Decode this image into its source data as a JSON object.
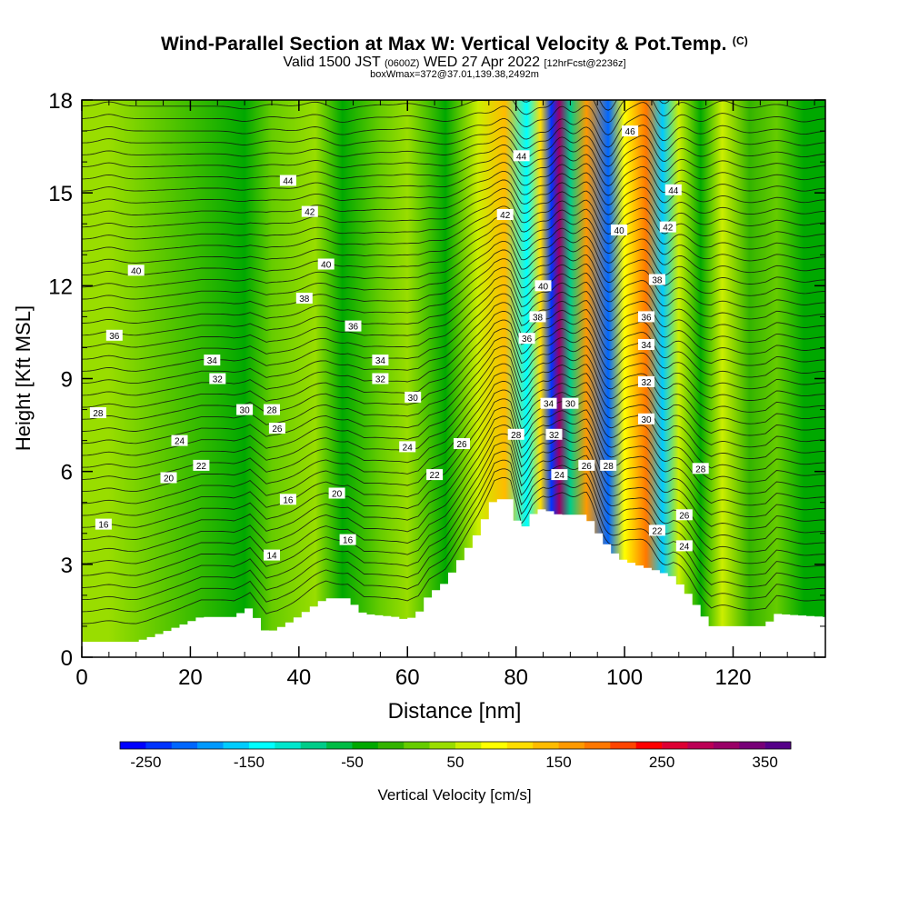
{
  "chart_data": {
    "type": "heatmap",
    "title": "Wind-Parallel Section at Max W: Vertical Velocity & Pot.Temp.",
    "title_mark": "(C)",
    "subtitle_main_a": "Valid 1500 JST",
    "subtitle_small_a": "(0600Z)",
    "subtitle_main_b": "WED 27 Apr 2022",
    "subtitle_small_b": "[12hrFcst@2236z]",
    "subtitle2": "boxWmax=372@37.01,139.38,2492m",
    "xlabel": "Distance [nm]",
    "ylabel": "Height [Kft MSL]",
    "xlim": [
      0,
      137
    ],
    "ylim": [
      0,
      18
    ],
    "x_ticks": [
      "0",
      "20",
      "40",
      "60",
      "80",
      "100",
      "120"
    ],
    "y_ticks": [
      "0",
      "3",
      "6",
      "9",
      "12",
      "15",
      "18"
    ],
    "colorbar": {
      "label": "Vertical Velocity [cm/s]",
      "tick_labels": [
        "-250",
        "-150",
        "-50",
        "50",
        "150",
        "250",
        "350"
      ],
      "tick_values": [
        -250,
        -150,
        -50,
        50,
        150,
        250,
        350
      ],
      "range": [
        -275,
        375
      ],
      "colors": [
        "#0000ff",
        "#0033ff",
        "#0066ff",
        "#0099ff",
        "#00ccff",
        "#00ffff",
        "#00e6cc",
        "#00cc88",
        "#00bb44",
        "#00a800",
        "#33b300",
        "#66cc00",
        "#99dd00",
        "#ccee00",
        "#ffff00",
        "#ffdd00",
        "#ffbb00",
        "#ff9900",
        "#ff7700",
        "#ff4400",
        "#ff0000",
        "#dd0033",
        "#bb0055",
        "#990066",
        "#770077",
        "#550088"
      ]
    },
    "terrain_kft": [
      {
        "x": 0,
        "h": 0.5
      },
      {
        "x": 10,
        "h": 0.5
      },
      {
        "x": 12,
        "h": 0.6
      },
      {
        "x": 18,
        "h": 1.0
      },
      {
        "x": 22,
        "h": 1.3
      },
      {
        "x": 28,
        "h": 1.3
      },
      {
        "x": 31,
        "h": 1.6
      },
      {
        "x": 34,
        "h": 0.8
      },
      {
        "x": 36,
        "h": 0.9
      },
      {
        "x": 39,
        "h": 1.2
      },
      {
        "x": 45,
        "h": 1.9
      },
      {
        "x": 49,
        "h": 1.9
      },
      {
        "x": 52,
        "h": 1.4
      },
      {
        "x": 58,
        "h": 1.3
      },
      {
        "x": 60,
        "h": 1.2
      },
      {
        "x": 62,
        "h": 1.4
      },
      {
        "x": 64,
        "h": 2.0
      },
      {
        "x": 67,
        "h": 2.4
      },
      {
        "x": 70,
        "h": 3.2
      },
      {
        "x": 73,
        "h": 4.0
      },
      {
        "x": 76,
        "h": 5.1
      },
      {
        "x": 79,
        "h": 5.1
      },
      {
        "x": 81,
        "h": 4.0
      },
      {
        "x": 83,
        "h": 4.6
      },
      {
        "x": 85,
        "h": 4.8
      },
      {
        "x": 88,
        "h": 4.6
      },
      {
        "x": 93,
        "h": 4.6
      },
      {
        "x": 96,
        "h": 3.8
      },
      {
        "x": 99,
        "h": 3.2
      },
      {
        "x": 102,
        "h": 3.0
      },
      {
        "x": 106,
        "h": 2.8
      },
      {
        "x": 109,
        "h": 2.6
      },
      {
        "x": 112,
        "h": 2.0
      },
      {
        "x": 116,
        "h": 1.0
      },
      {
        "x": 120,
        "h": 1.0
      },
      {
        "x": 126,
        "h": 1.0
      },
      {
        "x": 128,
        "h": 1.4
      },
      {
        "x": 137,
        "h": 1.3
      }
    ],
    "vertical_velocity_bands": [
      {
        "x": 5,
        "w": 46
      },
      {
        "x": 30,
        "w": -30
      },
      {
        "x": 35,
        "w": 20
      },
      {
        "x": 43,
        "w": 45
      },
      {
        "x": 48,
        "w": -40
      },
      {
        "x": 55,
        "w": 15
      },
      {
        "x": 60,
        "w": 30
      },
      {
        "x": 67,
        "w": -30
      },
      {
        "x": 73,
        "w": 60
      },
      {
        "x": 78,
        "w": 140
      },
      {
        "x": 82,
        "w": -130
      },
      {
        "x": 84.5,
        "w": 110
      },
      {
        "x": 86.5,
        "w": -230
      },
      {
        "x": 88,
        "w": 310
      },
      {
        "x": 90,
        "w": -90
      },
      {
        "x": 93,
        "w": 170
      },
      {
        "x": 97,
        "w": -210
      },
      {
        "x": 100,
        "w": 100
      },
      {
        "x": 104,
        "w": 190
      },
      {
        "x": 107,
        "w": -160
      },
      {
        "x": 110,
        "w": 70
      },
      {
        "x": 114,
        "w": -40
      },
      {
        "x": 118,
        "w": 60
      },
      {
        "x": 123,
        "w": -20
      },
      {
        "x": 128,
        "w": 20
      },
      {
        "x": 133,
        "w": -35
      }
    ],
    "theta_contour_labels": [
      {
        "text": "46",
        "x": 101,
        "y": 17.0
      },
      {
        "text": "44",
        "x": 81,
        "y": 16.2
      },
      {
        "text": "44",
        "x": 38,
        "y": 15.4
      },
      {
        "text": "44",
        "x": 109,
        "y": 15.1
      },
      {
        "text": "42",
        "x": 42,
        "y": 14.4
      },
      {
        "text": "42",
        "x": 78,
        "y": 14.3
      },
      {
        "text": "42",
        "x": 108,
        "y": 13.9
      },
      {
        "text": "40",
        "x": 99,
        "y": 13.8
      },
      {
        "text": "40",
        "x": 45,
        "y": 12.7
      },
      {
        "text": "40",
        "x": 10,
        "y": 12.5
      },
      {
        "text": "38",
        "x": 106,
        "y": 12.2
      },
      {
        "text": "40",
        "x": 85,
        "y": 12.0
      },
      {
        "text": "38",
        "x": 41,
        "y": 11.6
      },
      {
        "text": "38",
        "x": 84,
        "y": 11.0
      },
      {
        "text": "36",
        "x": 104,
        "y": 11.0
      },
      {
        "text": "36",
        "x": 50,
        "y": 10.7
      },
      {
        "text": "36",
        "x": 82,
        "y": 10.3
      },
      {
        "text": "36",
        "x": 6,
        "y": 10.4
      },
      {
        "text": "34",
        "x": 104,
        "y": 10.1
      },
      {
        "text": "34",
        "x": 24,
        "y": 9.6
      },
      {
        "text": "34",
        "x": 55,
        "y": 9.6
      },
      {
        "text": "32",
        "x": 25,
        "y": 9.0
      },
      {
        "text": "32",
        "x": 55,
        "y": 9.0
      },
      {
        "text": "32",
        "x": 104,
        "y": 8.9
      },
      {
        "text": "30",
        "x": 61,
        "y": 8.4
      },
      {
        "text": "34",
        "x": 86,
        "y": 8.2
      },
      {
        "text": "30",
        "x": 90,
        "y": 8.2
      },
      {
        "text": "30",
        "x": 30,
        "y": 8.0
      },
      {
        "text": "28",
        "x": 35,
        "y": 8.0
      },
      {
        "text": "28",
        "x": 3,
        "y": 7.9
      },
      {
        "text": "30",
        "x": 104,
        "y": 7.7
      },
      {
        "text": "26",
        "x": 36,
        "y": 7.4
      },
      {
        "text": "28",
        "x": 80,
        "y": 7.2
      },
      {
        "text": "32",
        "x": 87,
        "y": 7.2
      },
      {
        "text": "24",
        "x": 18,
        "y": 7.0
      },
      {
        "text": "26",
        "x": 70,
        "y": 6.9
      },
      {
        "text": "24",
        "x": 60,
        "y": 6.8
      },
      {
        "text": "22",
        "x": 22,
        "y": 6.2
      },
      {
        "text": "26",
        "x": 93,
        "y": 6.2
      },
      {
        "text": "28",
        "x": 97,
        "y": 6.2
      },
      {
        "text": "28",
        "x": 114,
        "y": 6.1
      },
      {
        "text": "22",
        "x": 65,
        "y": 5.9
      },
      {
        "text": "24",
        "x": 88,
        "y": 5.9
      },
      {
        "text": "20",
        "x": 16,
        "y": 5.8
      },
      {
        "text": "20",
        "x": 47,
        "y": 5.3
      },
      {
        "text": "16",
        "x": 38,
        "y": 5.1
      },
      {
        "text": "26",
        "x": 111,
        "y": 4.6
      },
      {
        "text": "16",
        "x": 4,
        "y": 4.3
      },
      {
        "text": "22",
        "x": 106,
        "y": 4.1
      },
      {
        "text": "16",
        "x": 49,
        "y": 3.8
      },
      {
        "text": "24",
        "x": 111,
        "y": 3.6
      },
      {
        "text": "14",
        "x": 35,
        "y": 3.3
      }
    ]
  }
}
